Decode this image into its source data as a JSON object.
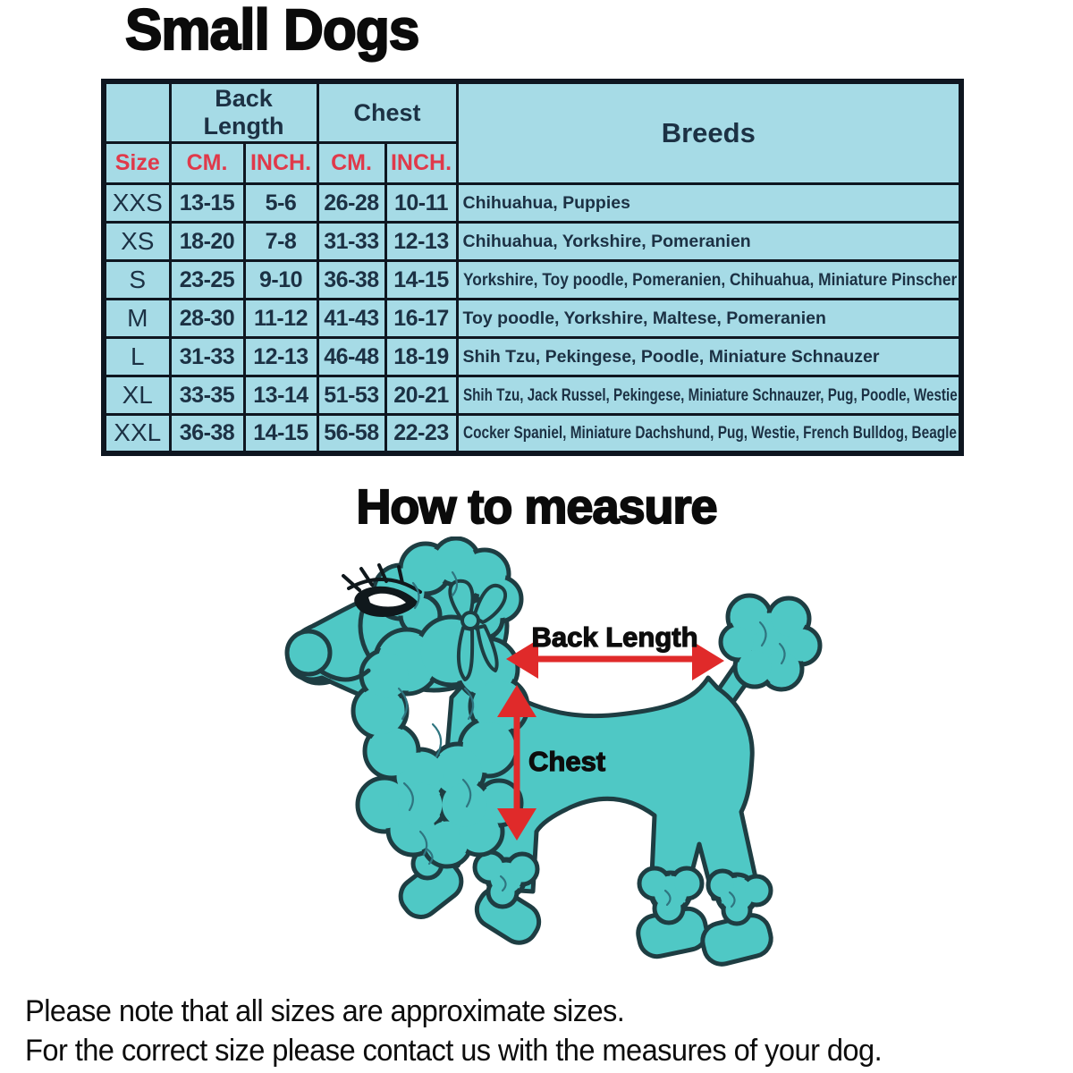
{
  "page": {
    "title": "Small Dogs",
    "measure_title": "How to measure",
    "note_line1": "Please note that all sizes are approximate sizes.",
    "note_line2": "For the correct size please contact us with the measures of your dog."
  },
  "table": {
    "group_headers": {
      "back_length": "Back Length",
      "chest": "Chest",
      "breeds": "Breeds"
    },
    "sub_headers": {
      "size": "Size",
      "back_cm": "CM.",
      "back_inch": "INCH.",
      "chest_cm": "CM.",
      "chest_inch": "INCH."
    },
    "rows": [
      {
        "size": "XXS",
        "back_cm": "13-15",
        "back_inch": "5-6",
        "chest_cm": "26-28",
        "chest_inch": "10-11",
        "breeds": "Chihuahua, Puppies"
      },
      {
        "size": "XS",
        "back_cm": "18-20",
        "back_inch": "7-8",
        "chest_cm": "31-33",
        "chest_inch": "12-13",
        "breeds": "Chihuahua, Yorkshire, Pomeranien"
      },
      {
        "size": "S",
        "back_cm": "23-25",
        "back_inch": "9-10",
        "chest_cm": "36-38",
        "chest_inch": "14-15",
        "breeds": "Yorkshire, Toy poodle, Pomeranien, Chihuahua, Miniature Pinscher"
      },
      {
        "size": "M",
        "back_cm": "28-30",
        "back_inch": "11-12",
        "chest_cm": "41-43",
        "chest_inch": "16-17",
        "breeds": "Toy poodle, Yorkshire, Maltese, Pomeranien"
      },
      {
        "size": "L",
        "back_cm": "31-33",
        "back_inch": "12-13",
        "chest_cm": "46-48",
        "chest_inch": "18-19",
        "breeds": "Shih Tzu, Pekingese, Poodle, Miniature Schnauzer"
      },
      {
        "size": "XL",
        "back_cm": "33-35",
        "back_inch": "13-14",
        "chest_cm": "51-53",
        "chest_inch": "20-21",
        "breeds": "Shih Tzu, Jack Russel, Pekingese, Miniature Schnauzer, Pug, Poodle, Westie"
      },
      {
        "size": "XXL",
        "back_cm": "36-38",
        "back_inch": "14-15",
        "chest_cm": "56-58",
        "chest_inch": "22-23",
        "breeds": "Cocker Spaniel, Miniature Dachshund, Pug, Westie, French Bulldog, Beagle"
      }
    ]
  },
  "diagram": {
    "back_length_label": "Back Length",
    "chest_label": "Chest"
  },
  "colors": {
    "table_bg": "#a6dbe6",
    "table_border": "#0e1620",
    "header_red": "#e0394a",
    "text_navy": "#1c3144",
    "dog_teal": "#4fc8c5",
    "dog_outline": "#1e3d42",
    "arrow_red": "#e02a2a"
  }
}
